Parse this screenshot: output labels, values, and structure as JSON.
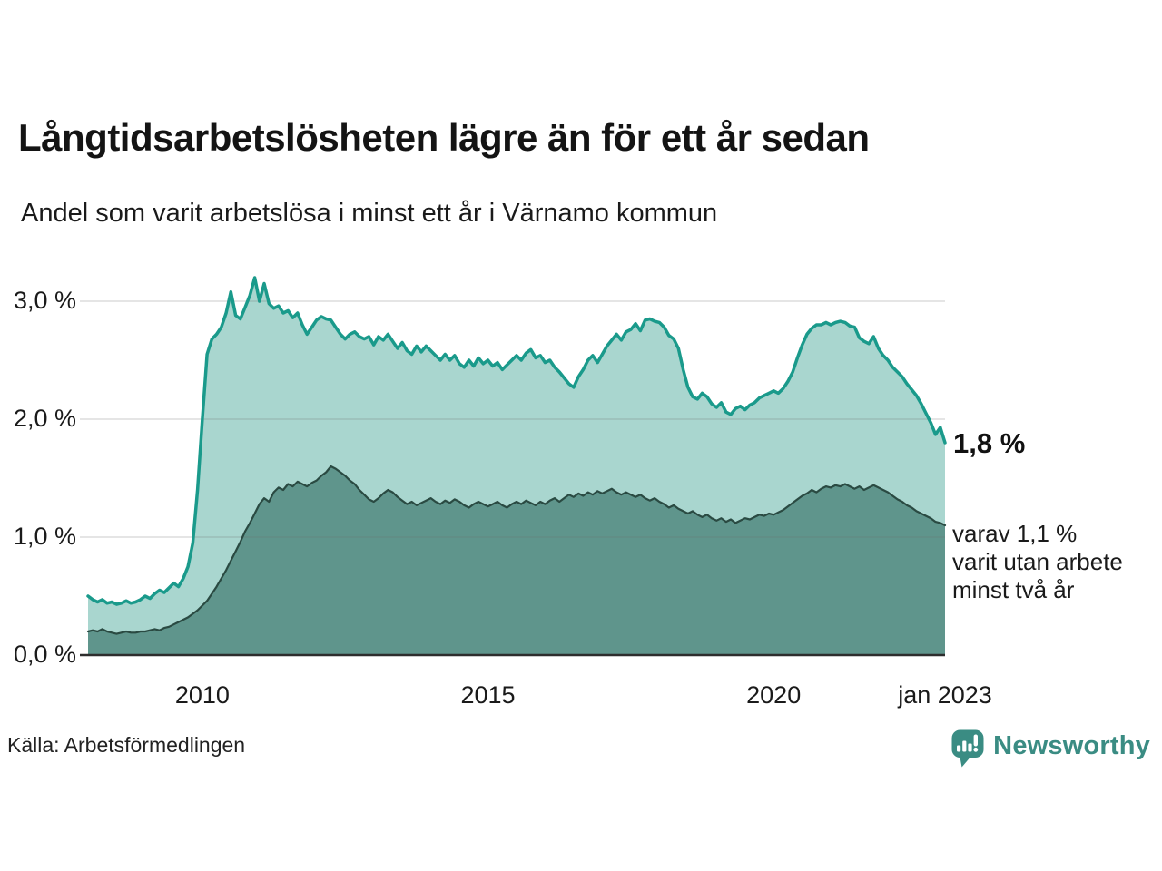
{
  "header": {
    "title": "Långtidsarbetslösheten lägre än för ett år sedan",
    "subtitle": "Andel som varit arbetslösa i minst ett år i Värnamo kommun"
  },
  "annotations": {
    "latest_main": "1,8 %",
    "latest_secondary_lines": [
      "varav 1,1 %",
      "varit utan arbete",
      "minst två år"
    ]
  },
  "footer": {
    "source": "Källa: Arbetsförmedlingen",
    "brand": {
      "name": "Newsworthy",
      "color": "#3a8c83",
      "icon": "bar-chart-speech-bubble-icon"
    }
  },
  "chart_data": {
    "type": "area",
    "title": "Långtidsarbetslösheten lägre än för ett år sedan",
    "subtitle": "Andel som varit arbetslösa i minst ett år i Värnamo kommun",
    "xlabel": "",
    "ylabel": "",
    "x_start": "2008-01",
    "x_end": "2023-01",
    "frequency": "monthly",
    "ylim": [
      0,
      3.35
    ],
    "grid": true,
    "legend_position": "none",
    "grid_color": "rgba(110,110,110,0.18)",
    "axis_color": "#2d2d2d",
    "x_ticks": [
      {
        "label": "2010",
        "year": 2010
      },
      {
        "label": "2015",
        "year": 2015
      },
      {
        "label": "2020",
        "year": 2020
      },
      {
        "label": "jan 2023",
        "year": 2023
      }
    ],
    "y_ticks": [
      {
        "label": "0,0 %",
        "value": 0
      },
      {
        "label": "1,0 %",
        "value": 1
      },
      {
        "label": "2,0 %",
        "value": 2
      },
      {
        "label": "3,0 %",
        "value": 3
      }
    ],
    "series": [
      {
        "name": "Andel arbetslösa minst ett år",
        "end_label": "1,8 %",
        "line_color": "#1a9a8b",
        "fill_color": "#a9d6cf",
        "line_width": 3.5,
        "values": [
          0.5,
          0.47,
          0.45,
          0.47,
          0.44,
          0.45,
          0.43,
          0.44,
          0.46,
          0.44,
          0.45,
          0.47,
          0.5,
          0.48,
          0.52,
          0.55,
          0.53,
          0.57,
          0.61,
          0.58,
          0.65,
          0.75,
          0.95,
          1.4,
          2.0,
          2.55,
          2.68,
          2.72,
          2.78,
          2.9,
          3.08,
          2.88,
          2.85,
          2.95,
          3.05,
          3.2,
          3.0,
          3.15,
          2.98,
          2.94,
          2.96,
          2.9,
          2.92,
          2.86,
          2.9,
          2.8,
          2.72,
          2.78,
          2.84,
          2.87,
          2.85,
          2.84,
          2.78,
          2.72,
          2.68,
          2.72,
          2.74,
          2.7,
          2.68,
          2.7,
          2.63,
          2.7,
          2.67,
          2.72,
          2.66,
          2.6,
          2.65,
          2.58,
          2.55,
          2.62,
          2.57,
          2.62,
          2.58,
          2.54,
          2.5,
          2.55,
          2.5,
          2.54,
          2.47,
          2.44,
          2.5,
          2.45,
          2.52,
          2.47,
          2.5,
          2.45,
          2.48,
          2.42,
          2.46,
          2.5,
          2.54,
          2.5,
          2.56,
          2.59,
          2.52,
          2.54,
          2.48,
          2.5,
          2.44,
          2.4,
          2.35,
          2.3,
          2.27,
          2.36,
          2.42,
          2.5,
          2.54,
          2.48,
          2.55,
          2.62,
          2.67,
          2.72,
          2.67,
          2.74,
          2.76,
          2.81,
          2.75,
          2.84,
          2.85,
          2.83,
          2.82,
          2.78,
          2.71,
          2.68,
          2.6,
          2.42,
          2.27,
          2.19,
          2.17,
          2.22,
          2.19,
          2.13,
          2.1,
          2.14,
          2.06,
          2.04,
          2.09,
          2.11,
          2.08,
          2.12,
          2.14,
          2.18,
          2.2,
          2.22,
          2.24,
          2.22,
          2.26,
          2.32,
          2.4,
          2.52,
          2.63,
          2.72,
          2.77,
          2.8,
          2.8,
          2.82,
          2.8,
          2.82,
          2.83,
          2.82,
          2.79,
          2.78,
          2.69,
          2.66,
          2.64,
          2.7,
          2.6,
          2.54,
          2.5,
          2.44,
          2.4,
          2.36,
          2.3,
          2.25,
          2.2,
          2.13,
          2.05,
          1.97,
          1.87,
          1.93,
          1.8
        ]
      },
      {
        "name": "Andel arbetslösa minst två år",
        "end_label": "varav 1,1 % varit utan arbete minst två år",
        "line_color": "#2a4a42",
        "fill_color": "#5f958c",
        "line_width": 2.2,
        "values": [
          0.2,
          0.21,
          0.2,
          0.22,
          0.2,
          0.19,
          0.18,
          0.19,
          0.2,
          0.19,
          0.19,
          0.2,
          0.2,
          0.21,
          0.22,
          0.21,
          0.23,
          0.24,
          0.26,
          0.28,
          0.3,
          0.32,
          0.35,
          0.38,
          0.42,
          0.46,
          0.52,
          0.58,
          0.65,
          0.72,
          0.8,
          0.88,
          0.96,
          1.05,
          1.12,
          1.2,
          1.28,
          1.33,
          1.3,
          1.38,
          1.42,
          1.4,
          1.45,
          1.43,
          1.47,
          1.45,
          1.43,
          1.46,
          1.48,
          1.52,
          1.55,
          1.6,
          1.58,
          1.55,
          1.52,
          1.48,
          1.45,
          1.4,
          1.36,
          1.32,
          1.3,
          1.33,
          1.37,
          1.4,
          1.38,
          1.34,
          1.31,
          1.28,
          1.3,
          1.27,
          1.29,
          1.31,
          1.33,
          1.3,
          1.28,
          1.31,
          1.29,
          1.32,
          1.3,
          1.27,
          1.25,
          1.28,
          1.3,
          1.28,
          1.26,
          1.28,
          1.3,
          1.27,
          1.25,
          1.28,
          1.3,
          1.28,
          1.31,
          1.29,
          1.27,
          1.3,
          1.28,
          1.31,
          1.33,
          1.3,
          1.33,
          1.36,
          1.34,
          1.37,
          1.35,
          1.38,
          1.36,
          1.39,
          1.37,
          1.39,
          1.41,
          1.38,
          1.36,
          1.38,
          1.36,
          1.34,
          1.36,
          1.33,
          1.31,
          1.33,
          1.3,
          1.28,
          1.25,
          1.27,
          1.24,
          1.22,
          1.2,
          1.22,
          1.19,
          1.17,
          1.19,
          1.16,
          1.14,
          1.16,
          1.13,
          1.15,
          1.12,
          1.14,
          1.16,
          1.15,
          1.17,
          1.19,
          1.18,
          1.2,
          1.19,
          1.21,
          1.23,
          1.26,
          1.29,
          1.32,
          1.35,
          1.37,
          1.4,
          1.38,
          1.41,
          1.43,
          1.42,
          1.44,
          1.43,
          1.45,
          1.43,
          1.41,
          1.43,
          1.4,
          1.42,
          1.44,
          1.42,
          1.4,
          1.38,
          1.35,
          1.32,
          1.3,
          1.27,
          1.25,
          1.22,
          1.2,
          1.18,
          1.16,
          1.13,
          1.12,
          1.1
        ]
      }
    ]
  }
}
